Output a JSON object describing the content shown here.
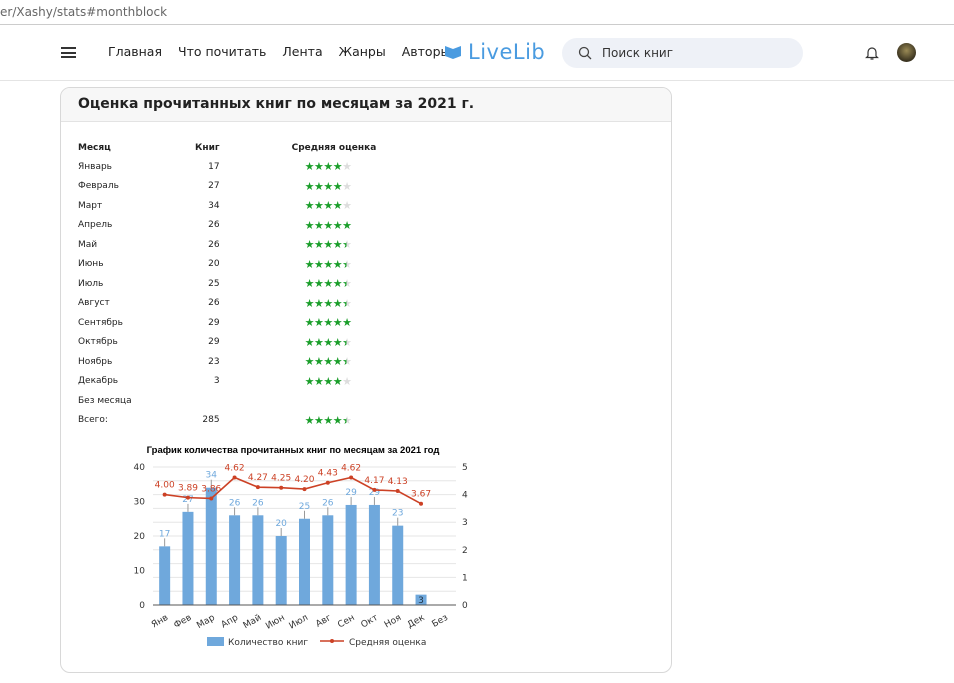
{
  "browser": {
    "url": "er/Xashy/stats#monthblock"
  },
  "nav": {
    "menu": [
      "Главная",
      "Что почитать",
      "Лента",
      "Жанры",
      "Авторы"
    ],
    "logo": "LiveLib",
    "search_placeholder": "Поиск книг"
  },
  "colors": {
    "accent": "#4a9be0",
    "stars": "#1a9e2a",
    "bars": "#6fa8dc",
    "line": "#cc4125"
  },
  "card": {
    "title": "Оценка прочитанных книг по месяцам за 2021 г.",
    "headers": [
      "Месяц",
      "Книг",
      "Средняя оценка"
    ],
    "rows": [
      {
        "month": "Январь",
        "count": "17",
        "stars": 4
      },
      {
        "month": "Февраль",
        "count": "27",
        "stars": 4
      },
      {
        "month": "Март",
        "count": "34",
        "stars": 4
      },
      {
        "month": "Апрель",
        "count": "26",
        "stars": 5
      },
      {
        "month": "Май",
        "count": "26",
        "stars": 4.5
      },
      {
        "month": "Июнь",
        "count": "20",
        "stars": 4.5
      },
      {
        "month": "Июль",
        "count": "25",
        "stars": 4.5
      },
      {
        "month": "Август",
        "count": "26",
        "stars": 4.5
      },
      {
        "month": "Сентябрь",
        "count": "29",
        "stars": 5
      },
      {
        "month": "Октябрь",
        "count": "29",
        "stars": 4.5
      },
      {
        "month": "Ноябрь",
        "count": "23",
        "stars": 4.5
      },
      {
        "month": "Декабрь",
        "count": "3",
        "stars": 4
      },
      {
        "month": "Без месяца",
        "count": "",
        "stars": null
      },
      {
        "month": "Всего:",
        "count": "285",
        "stars": 4.5
      }
    ]
  },
  "chart_data": {
    "type": "bar+line",
    "title": "График количества прочитанных книг по месяцам за 2021 год",
    "categories": [
      "Янв",
      "Фев",
      "Мар",
      "Апр",
      "Май",
      "Июн",
      "Июл",
      "Авг",
      "Сен",
      "Окт",
      "Ноя",
      "Дек",
      "Без"
    ],
    "series": [
      {
        "name": "Количество книг",
        "type": "bar",
        "axis": "left",
        "values": [
          17,
          27,
          34,
          26,
          26,
          20,
          25,
          26,
          29,
          29,
          23,
          3,
          null
        ]
      },
      {
        "name": "Средняя оценка",
        "type": "line",
        "axis": "right",
        "values": [
          4.0,
          3.89,
          3.86,
          4.62,
          4.27,
          4.25,
          4.2,
          4.43,
          4.62,
          4.17,
          4.13,
          3.67,
          null
        ]
      }
    ],
    "ylim_left": [
      0,
      40
    ],
    "yticks_left": [
      0,
      10,
      20,
      30,
      40
    ],
    "ylim_right": [
      0,
      5
    ],
    "yticks_right": [
      0,
      1,
      2,
      3,
      4,
      5
    ],
    "grid": true,
    "legend": "bottom"
  }
}
